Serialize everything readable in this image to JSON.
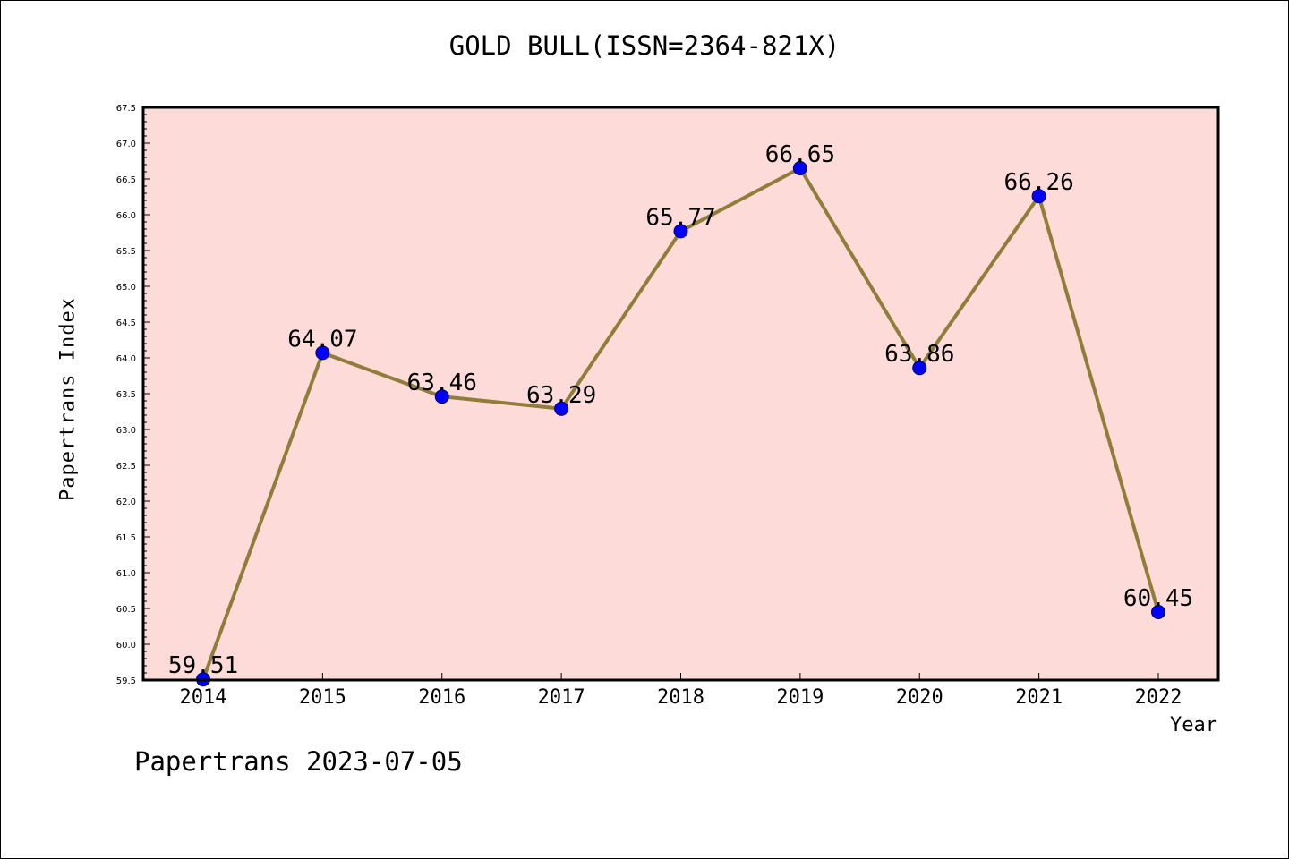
{
  "chart_data": {
    "type": "line",
    "title": "GOLD BULL(ISSN=2364-821X)",
    "xlabel": "Year",
    "ylabel": "Papertrans Index",
    "categories": [
      "2014",
      "2015",
      "2016",
      "2017",
      "2018",
      "2019",
      "2020",
      "2021",
      "2022"
    ],
    "series": [
      {
        "values": [
          59.51,
          64.07,
          63.46,
          63.29,
          65.77,
          66.65,
          63.86,
          66.26,
          60.45
        ]
      }
    ],
    "data_labels": [
      "59.51",
      "64.07",
      "63.46",
      "63.29",
      "65.77",
      "66.65",
      "63.86",
      "66.26",
      "60.45"
    ],
    "ylim": [
      59.5,
      67.5
    ],
    "yticks": [
      "59.5",
      "60.0",
      "60.5",
      "61.0",
      "61.5",
      "62.0",
      "62.5",
      "63.0",
      "63.5",
      "64.0",
      "64.5",
      "65.0",
      "65.5",
      "66.0",
      "66.5",
      "67.0",
      "67.5"
    ],
    "grid": false,
    "colors": {
      "plot_background": "#fddbd9",
      "line": "#8f7e3a",
      "marker": "#0000ff"
    }
  },
  "footer": "Papertrans 2023-07-05"
}
